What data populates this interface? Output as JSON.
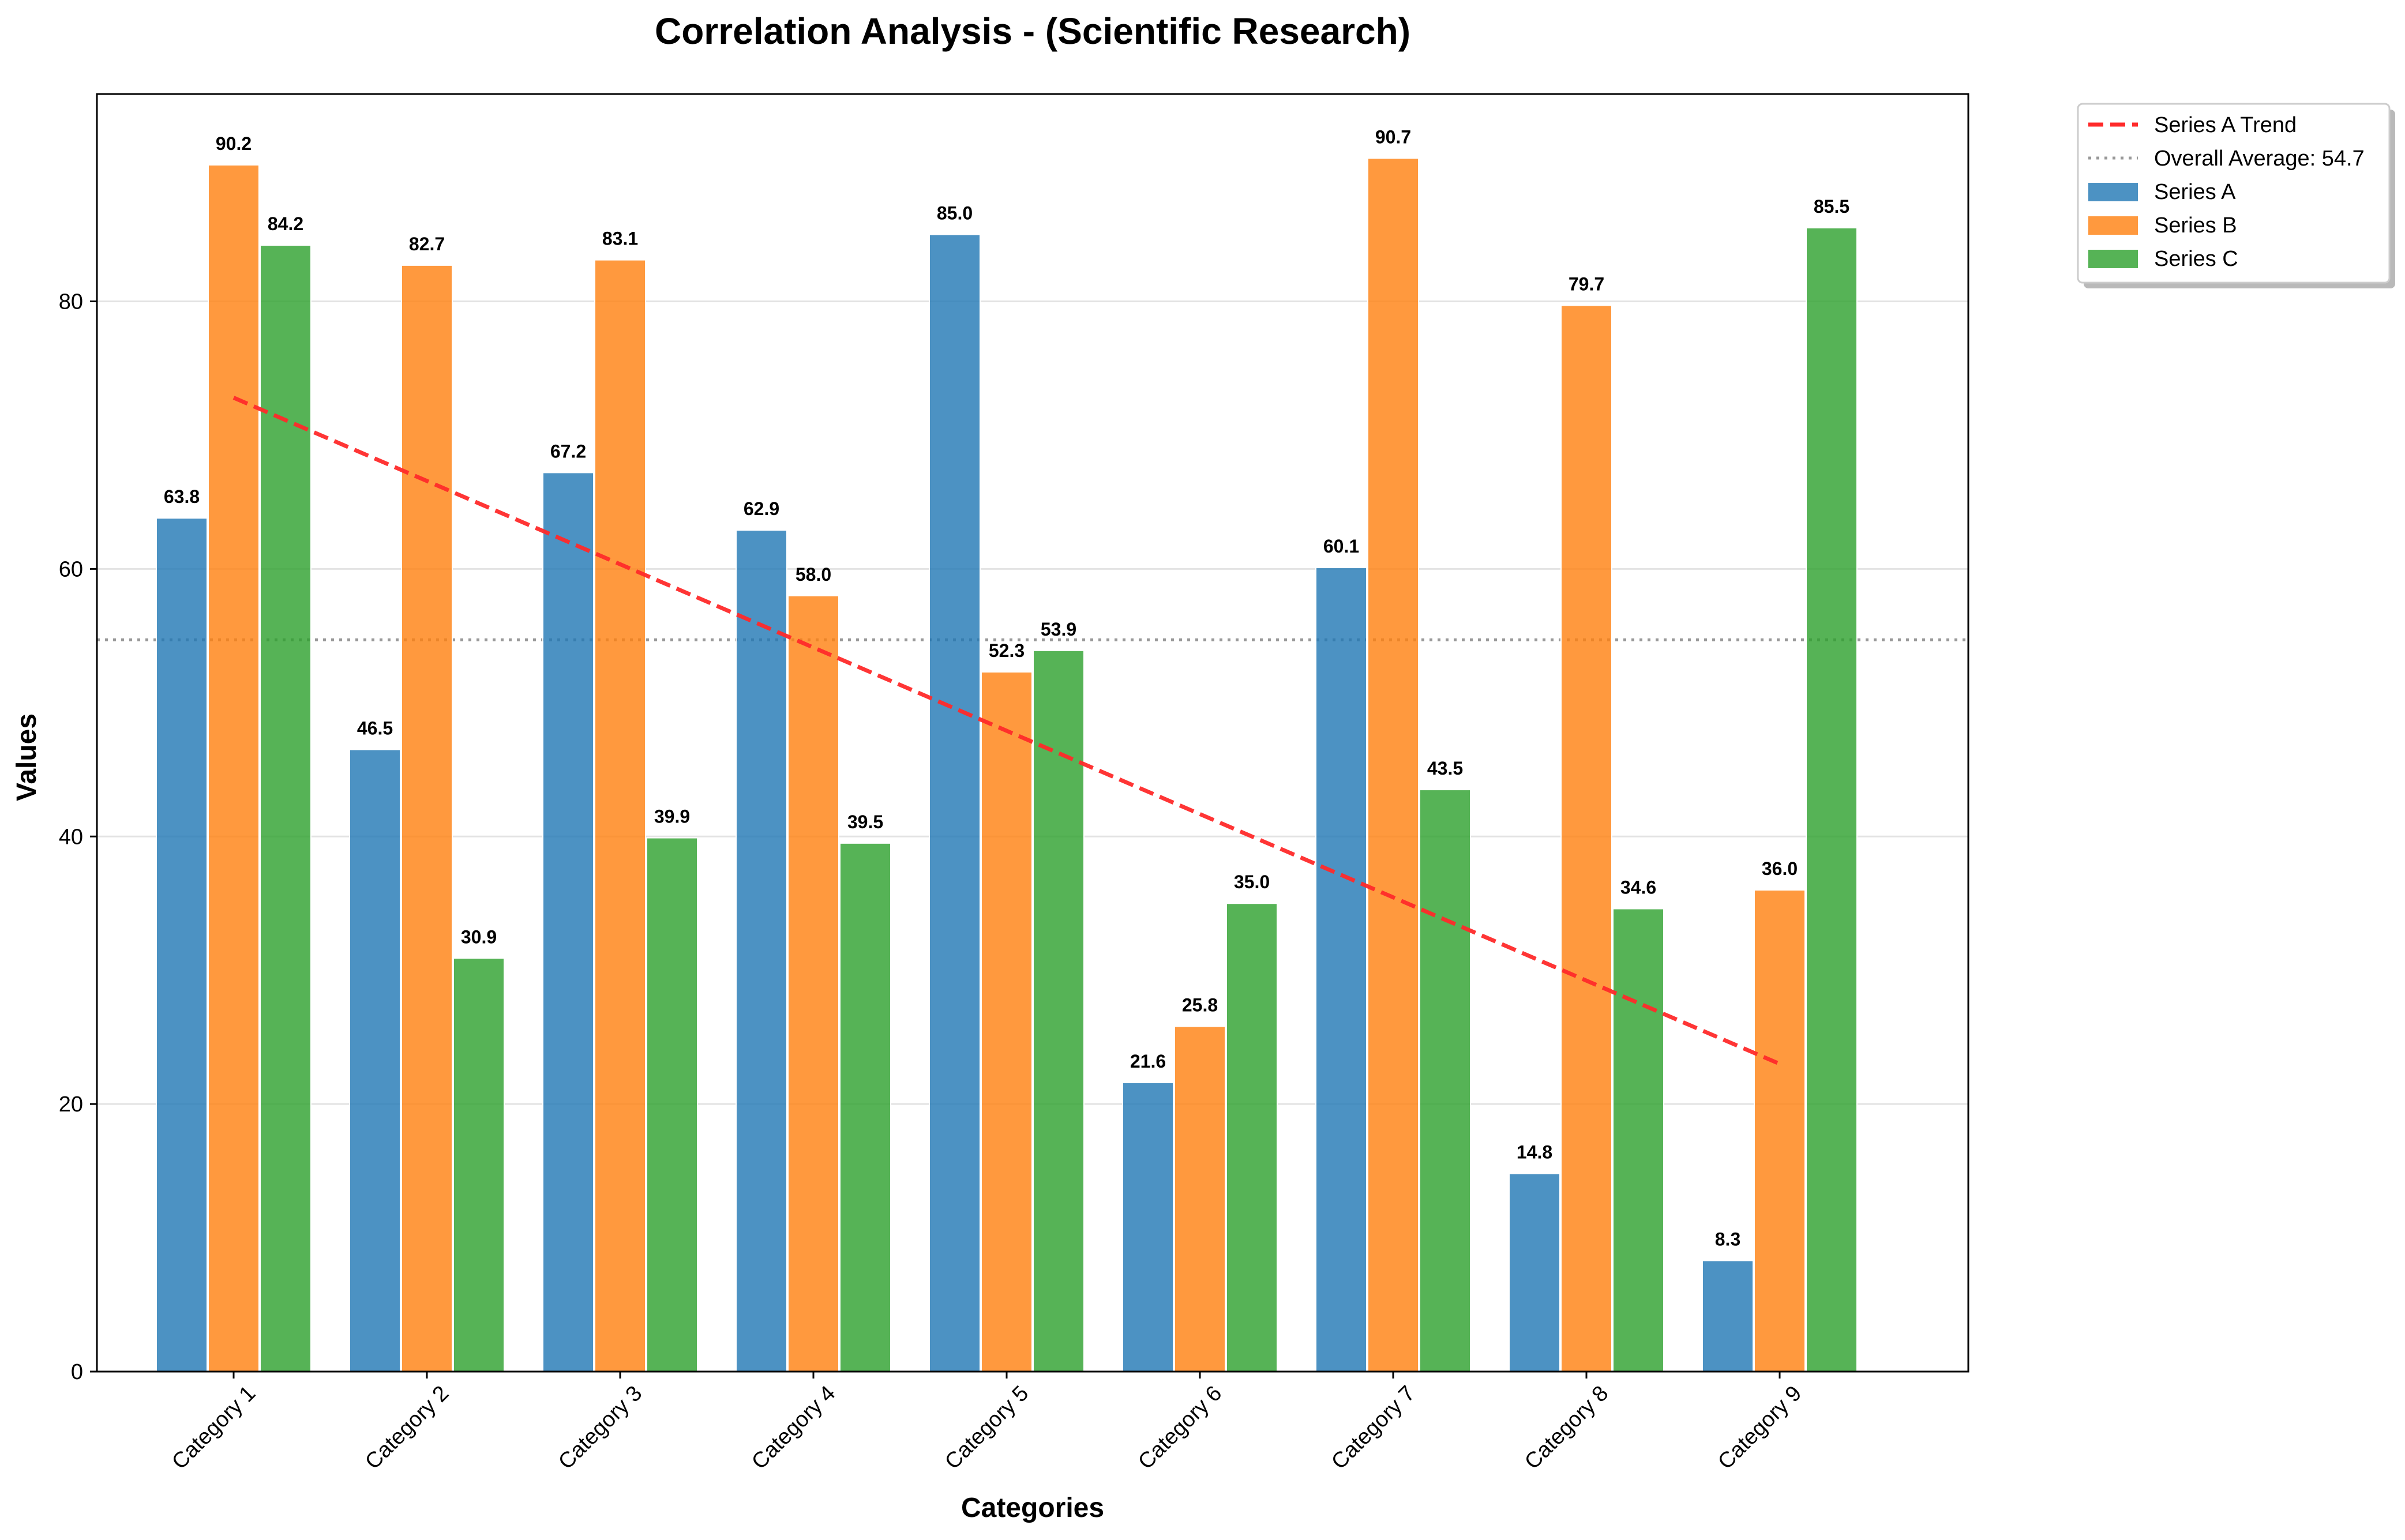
{
  "chart_data": {
    "type": "bar",
    "title": "Correlation Analysis - (Scientific Research)",
    "xlabel": "Categories",
    "ylabel": "Values",
    "ylim": [
      0,
      95.5
    ],
    "yticks": [
      0,
      20,
      40,
      60,
      80
    ],
    "grid": true,
    "legend_position": "outside-top-right",
    "categories": [
      "Category 1",
      "Category 2",
      "Category 3",
      "Category 4",
      "Category 5",
      "Category 6",
      "Category 7",
      "Category 8",
      "Category 9"
    ],
    "series": [
      {
        "name": "Series A",
        "color": "#1f77b4",
        "values": [
          63.8,
          46.5,
          67.2,
          62.9,
          85.0,
          21.6,
          60.1,
          14.8,
          8.3
        ]
      },
      {
        "name": "Series B",
        "color": "#ff7f0e",
        "values": [
          90.2,
          82.7,
          83.1,
          58.0,
          52.3,
          25.8,
          90.7,
          79.7,
          36.0
        ]
      },
      {
        "name": "Series C",
        "color": "#2ca02c",
        "values": [
          84.2,
          30.9,
          39.9,
          39.5,
          53.9,
          35.0,
          43.5,
          34.6,
          85.5
        ]
      }
    ],
    "value_labels": [
      [
        "63.8",
        "46.5",
        "67.2",
        "62.9",
        "85.0",
        "21.6",
        "60.1",
        "14.8",
        "8.3"
      ],
      [
        "90.2",
        "82.7",
        "83.1",
        "58.0",
        "52.3",
        "25.8",
        "90.7",
        "79.7",
        "36.0"
      ],
      [
        "84.2",
        "30.9",
        "39.9",
        "39.5",
        "53.9",
        "35.0",
        "43.5",
        "34.6",
        "85.5"
      ]
    ],
    "trend_line": {
      "name": "Series A Trend",
      "color": "#ff2a2a",
      "style": "dashed",
      "start": {
        "category_index": 0,
        "value": 72.8
      },
      "end": {
        "category_index": 8,
        "value": 23.0
      }
    },
    "average_line": {
      "name": "Overall Average: 54.7",
      "value": 54.7,
      "color": "#999999",
      "style": "dotted"
    },
    "legend": [
      {
        "label": "Series A Trend",
        "kind": "line-dashed",
        "color": "#ff2a2a"
      },
      {
        "label": "Overall Average: 54.7",
        "kind": "line-dotted",
        "color": "#999999"
      },
      {
        "label": "Series A",
        "kind": "patch",
        "color": "#1f77b4"
      },
      {
        "label": "Series B",
        "kind": "patch",
        "color": "#ff7f0e"
      },
      {
        "label": "Series C",
        "kind": "patch",
        "color": "#2ca02c"
      }
    ]
  }
}
